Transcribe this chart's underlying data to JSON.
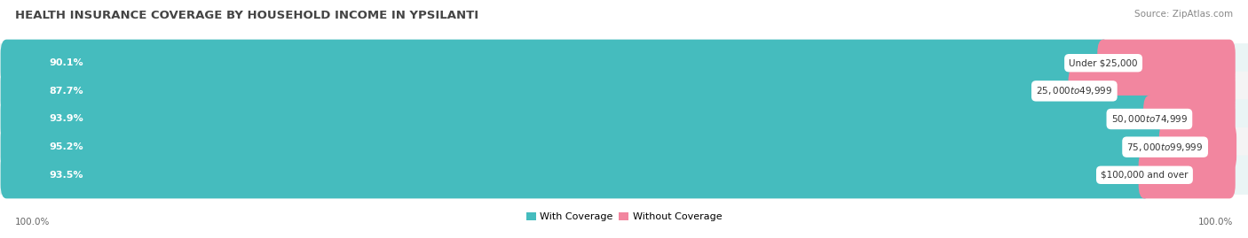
{
  "title": "HEALTH INSURANCE COVERAGE BY HOUSEHOLD INCOME IN YPSILANTI",
  "source": "Source: ZipAtlas.com",
  "categories": [
    "Under $25,000",
    "$25,000 to $49,999",
    "$50,000 to $74,999",
    "$75,000 to $99,999",
    "$100,000 and over"
  ],
  "with_coverage": [
    90.1,
    87.7,
    93.9,
    95.2,
    93.5
  ],
  "without_coverage": [
    9.9,
    12.3,
    6.1,
    4.9,
    6.5
  ],
  "coverage_color": "#45BCBE",
  "no_coverage_color": "#F2869F",
  "row_bg_even": "#EAF5F5",
  "row_bg_odd": "#F4F4F4",
  "title_fontsize": 9.5,
  "source_fontsize": 7.5,
  "label_fontsize": 8.0,
  "cat_fontsize": 7.5,
  "tick_fontsize": 7.5,
  "legend_fontsize": 8.0,
  "footer_label": "100.0%",
  "background_color": "#ffffff"
}
